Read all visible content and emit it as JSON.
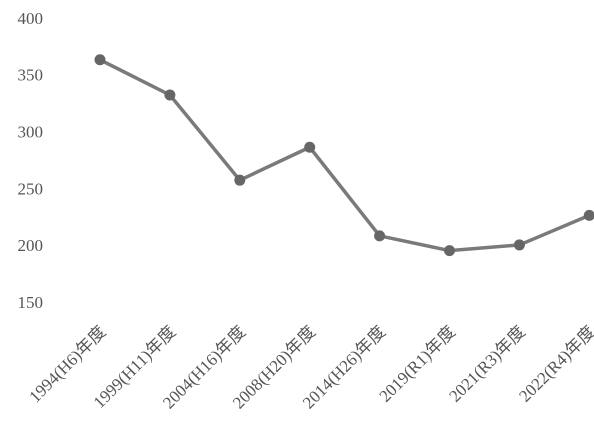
{
  "chart_data": {
    "type": "line",
    "categories": [
      "1994(H6)年度",
      "1999(H11)年度",
      "2004(H16)年度",
      "2008(H20)年度",
      "2014(H26)年度",
      "2019(R1)年度",
      "2021(R3)年度",
      "2022(R4)年度"
    ],
    "series": [
      {
        "color": "#7a7a7a",
        "values": [
          365,
          334,
          259,
          288,
          210,
          197,
          202,
          228
        ]
      }
    ],
    "ylim": [
      150,
      400
    ],
    "yticks": [
      150,
      200,
      250,
      300,
      350,
      400
    ],
    "grid": false
  }
}
